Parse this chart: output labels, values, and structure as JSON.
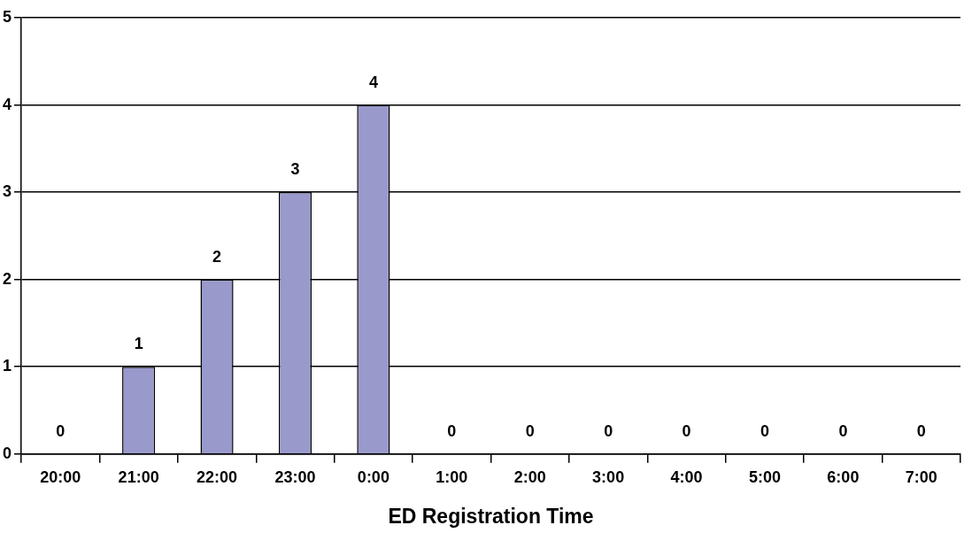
{
  "chart_data": {
    "type": "bar",
    "xlabel": "ED Registration Time",
    "categories": [
      "20:00",
      "21:00",
      "22:00",
      "23:00",
      "0:00",
      "1:00",
      "2:00",
      "3:00",
      "4:00",
      "5:00",
      "6:00",
      "7:00"
    ],
    "values": [
      0,
      1,
      2,
      3,
      4,
      0,
      0,
      0,
      0,
      0,
      0,
      0
    ],
    "color": "#9999cc",
    "ylim": [
      0,
      5
    ],
    "yticks": [
      0,
      1,
      2,
      3,
      4,
      5
    ],
    "grid": "y",
    "data_labels": true
  }
}
